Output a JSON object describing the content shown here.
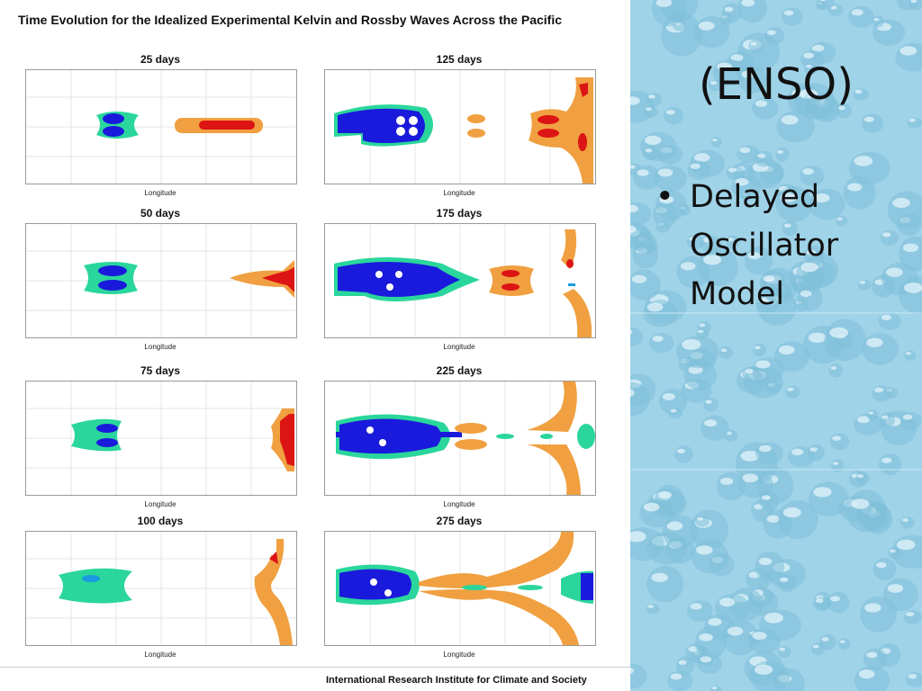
{
  "figure": {
    "title": "Time Evolution for the Idealized Experimental Kelvin and Rossby Waves Across the Pacific",
    "credit": "International Research Institute for Climate and Society",
    "xlabel": "Longitude",
    "panels": [
      {
        "id": "25",
        "title": "25 days"
      },
      {
        "id": "125",
        "title": "125 days"
      },
      {
        "id": "50",
        "title": "50 days"
      },
      {
        "id": "175",
        "title": "175 days"
      },
      {
        "id": "75",
        "title": "75 days"
      },
      {
        "id": "225",
        "title": "225 days"
      },
      {
        "id": "100",
        "title": "100 days"
      },
      {
        "id": "275",
        "title": "275 days"
      }
    ]
  },
  "slide": {
    "heading": "(ENSO)",
    "bullet_symbol": "•",
    "bullet_text": "Delayed Oscillator Model"
  },
  "colors": {
    "deep_blue": "#1a1adc",
    "teal": "#2ad69c",
    "orange": "#f0a040",
    "red": "#dc1414",
    "water": "#9fd3e8"
  }
}
